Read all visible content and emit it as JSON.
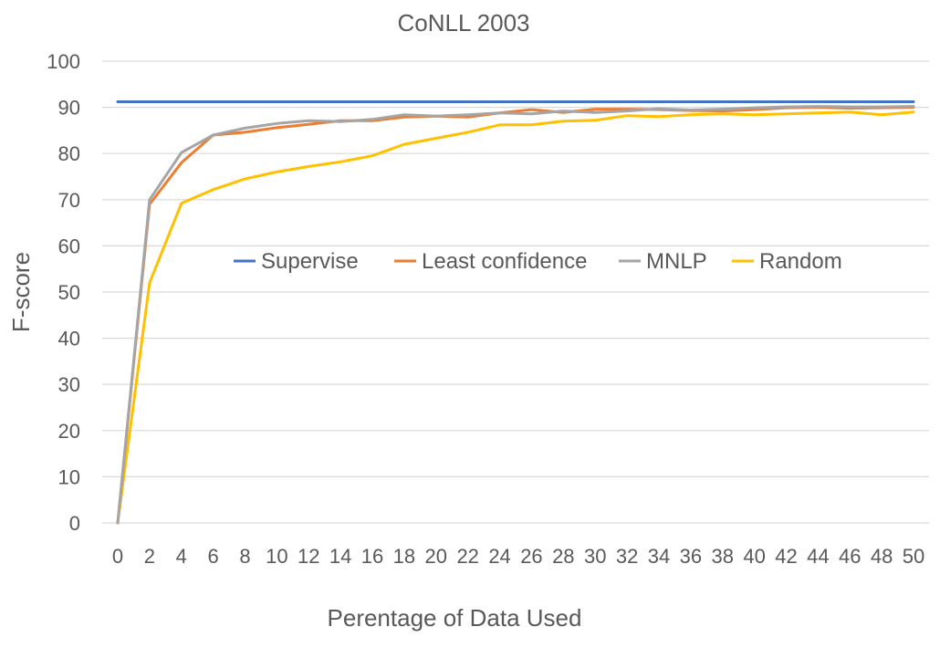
{
  "chart_data": {
    "type": "line",
    "title": "CoNLL 2003",
    "xlabel": "Perentage of Data Used",
    "ylabel": "F-score",
    "x": [
      0,
      2,
      4,
      6,
      8,
      10,
      12,
      14,
      16,
      18,
      20,
      22,
      24,
      26,
      28,
      30,
      32,
      34,
      36,
      38,
      40,
      42,
      44,
      46,
      48,
      50
    ],
    "x_tick_labels": [
      "0",
      "2",
      "4",
      "6",
      "8",
      "10",
      "12",
      "14",
      "16",
      "18",
      "20",
      "22",
      "24",
      "26",
      "28",
      "30",
      "32",
      "34",
      "36",
      "38",
      "40",
      "42",
      "44",
      "46",
      "48",
      "50"
    ],
    "y_tick_labels": [
      "0",
      "10",
      "20",
      "30",
      "40",
      "50",
      "60",
      "70",
      "80",
      "90",
      "100"
    ],
    "ylim": [
      0,
      100
    ],
    "grid": true,
    "legend_position": "center",
    "series": [
      {
        "name": "Supervise",
        "color": "#4472C4",
        "values": [
          91.2,
          91.2,
          91.2,
          91.2,
          91.2,
          91.2,
          91.2,
          91.2,
          91.2,
          91.2,
          91.2,
          91.2,
          91.2,
          91.2,
          91.2,
          91.2,
          91.2,
          91.2,
          91.2,
          91.2,
          91.2,
          91.2,
          91.2,
          91.2,
          91.2,
          91.2
        ]
      },
      {
        "name": "Least confidence",
        "color": "#ED7D31",
        "values": [
          0,
          69,
          78,
          84,
          84.6,
          85.6,
          86.3,
          87.1,
          87.1,
          87.9,
          88.1,
          87.9,
          88.8,
          89.5,
          88.9,
          89.6,
          89.6,
          89.5,
          89.3,
          89.2,
          89.5,
          89.9,
          90,
          89.8,
          89.9,
          90
        ]
      },
      {
        "name": "MNLP",
        "color": "#A5A5A5",
        "values": [
          0,
          70,
          80.2,
          84,
          85.5,
          86.5,
          87.1,
          86.9,
          87.4,
          88.4,
          88.1,
          88.4,
          88.8,
          88.6,
          89.2,
          88.9,
          89.2,
          89.7,
          89.4,
          89.6,
          89.9,
          90.1,
          90.2,
          90.1,
          90.1,
          90.2
        ]
      },
      {
        "name": "Random",
        "color": "#FFC000",
        "values": [
          0,
          52,
          69.2,
          72.2,
          74.5,
          76,
          77.2,
          78.2,
          79.5,
          82,
          83.3,
          84.6,
          86.2,
          86.2,
          87,
          87.2,
          88.2,
          88,
          88.4,
          88.6,
          88.4,
          88.6,
          88.8,
          89,
          88.4,
          89
        ]
      }
    ]
  }
}
